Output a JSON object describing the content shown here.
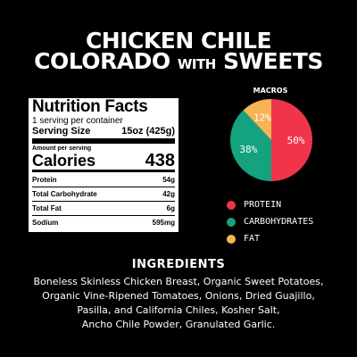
{
  "title": {
    "line1": "CHICKEN CHILE",
    "line2_main": "COLORADO",
    "line2_small": "WITH",
    "line2_end": "SWEETS"
  },
  "nutrition": {
    "heading": "Nutrition Facts",
    "servings": "1 serving per container",
    "serving_size_label": "Serving Size",
    "serving_size_value": "15oz (425g)",
    "amount_label": "Amount per serving",
    "calories_label": "Calories",
    "calories_value": "438",
    "rows": [
      {
        "label": "Protein",
        "value": "54g"
      },
      {
        "label": "Total Carbohydrate",
        "value": "42g"
      },
      {
        "label": "Total Fat",
        "value": "6g"
      },
      {
        "label": "Sodium",
        "value": "595mg"
      }
    ]
  },
  "macros": {
    "title": "MACROS",
    "slices": [
      {
        "name": "PROTEIN",
        "percent": 50,
        "label": "50%",
        "color": "#f0344a"
      },
      {
        "name": "CARBOHYDRATES",
        "percent": 38,
        "label": "38%",
        "color": "#15a37f"
      },
      {
        "name": "FAT",
        "percent": 12,
        "label": "12%",
        "color": "#f7b455"
      }
    ]
  },
  "ingredients": {
    "title": "INGREDIENTS",
    "lines": [
      "Boneless Skinless Chicken Breast, Organic Sweet Potatoes,",
      "Organic Vine-Ripened Tomatoes, Onions, Dried Guajillo,",
      "Pasilla, and California Chiles, Kosher Salt,",
      "Ancho Chile Powder, Granulated Garlic."
    ]
  }
}
